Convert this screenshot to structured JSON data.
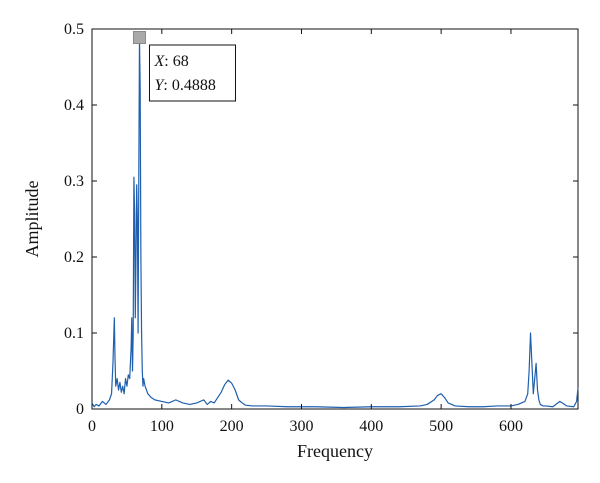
{
  "chart_data": {
    "type": "line",
    "title": "",
    "xlabel": "Frequency",
    "ylabel": "Amplitude",
    "xlim": [
      0,
      696
    ],
    "ylim": [
      0,
      0.5
    ],
    "xticks": [
      0,
      100,
      200,
      300,
      400,
      500,
      600
    ],
    "yticks": [
      0,
      0.1,
      0.2,
      0.3,
      0.4,
      0.5
    ],
    "xtick_labels": [
      "0",
      "100",
      "200",
      "300",
      "400",
      "500",
      "600"
    ],
    "ytick_labels": [
      "0",
      "0.1",
      "0.2",
      "0.3",
      "0.4",
      "0.5"
    ],
    "grid": false,
    "line_color": "#1f5fae",
    "series": [
      {
        "x": [
          0,
          3,
          6,
          10,
          15,
          20,
          25,
          28,
          30,
          32,
          33,
          34,
          36,
          38,
          40,
          42,
          44,
          46,
          48,
          50,
          52,
          54,
          56,
          57,
          58,
          59,
          60,
          61,
          62,
          63,
          64,
          65,
          66,
          67,
          68,
          69,
          70,
          71,
          72,
          73,
          74,
          76,
          78,
          80,
          85,
          90,
          100,
          110,
          120,
          130,
          140,
          150,
          160,
          165,
          170,
          175,
          180,
          185,
          190,
          195,
          200,
          205,
          210,
          215,
          220,
          230,
          250,
          280,
          320,
          360,
          400,
          440,
          470,
          480,
          490,
          495,
          500,
          505,
          510,
          520,
          540,
          560,
          580,
          600,
          610,
          620,
          624,
          626,
          628,
          630,
          632,
          634,
          636,
          638,
          640,
          642,
          646,
          650,
          660,
          670,
          680,
          690,
          694,
          696
        ],
        "y": [
          0.008,
          0.003,
          0.006,
          0.004,
          0.01,
          0.006,
          0.012,
          0.02,
          0.06,
          0.12,
          0.065,
          0.03,
          0.04,
          0.025,
          0.035,
          0.022,
          0.03,
          0.02,
          0.04,
          0.03,
          0.045,
          0.04,
          0.08,
          0.12,
          0.05,
          0.1,
          0.305,
          0.26,
          0.12,
          0.2,
          0.295,
          0.25,
          0.1,
          0.3,
          0.4888,
          0.42,
          0.2,
          0.1,
          0.05,
          0.03,
          0.04,
          0.03,
          0.025,
          0.02,
          0.015,
          0.012,
          0.01,
          0.008,
          0.012,
          0.008,
          0.006,
          0.008,
          0.012,
          0.006,
          0.01,
          0.008,
          0.015,
          0.022,
          0.032,
          0.038,
          0.034,
          0.025,
          0.012,
          0.008,
          0.005,
          0.004,
          0.004,
          0.003,
          0.003,
          0.002,
          0.003,
          0.003,
          0.004,
          0.006,
          0.012,
          0.018,
          0.02,
          0.015,
          0.008,
          0.004,
          0.003,
          0.003,
          0.004,
          0.004,
          0.006,
          0.01,
          0.02,
          0.05,
          0.1,
          0.06,
          0.02,
          0.04,
          0.06,
          0.025,
          0.012,
          0.006,
          0.004,
          0.004,
          0.003,
          0.01,
          0.004,
          0.003,
          0.01,
          0.028
        ]
      }
    ],
    "annotation": {
      "x": 68,
      "y": 0.4888,
      "x_label": "X",
      "x_value": "68",
      "y_label": "Y",
      "y_value": "0.4888"
    }
  }
}
